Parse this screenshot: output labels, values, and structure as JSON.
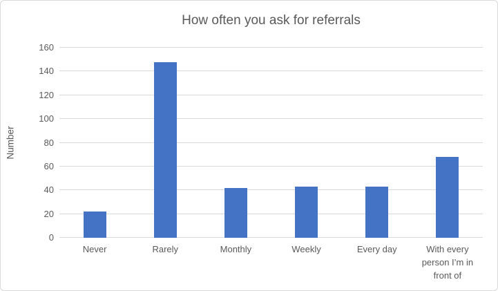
{
  "chart_data": {
    "type": "bar",
    "title": "How often you ask for referrals",
    "xlabel": "",
    "ylabel": "Number",
    "categories": [
      "Never",
      "Rarely",
      "Monthly",
      "Weekly",
      "Every day",
      "With every person I’m in front of"
    ],
    "values": [
      22,
      148,
      42,
      43,
      43,
      68
    ],
    "ylim": [
      0,
      160
    ],
    "y_ticks": [
      0,
      20,
      40,
      60,
      80,
      100,
      120,
      140,
      160
    ],
    "grid": "horizontal",
    "legend": "none",
    "colors": {
      "bar": "#4472C4",
      "gridline": "#D9D9D9",
      "axis_line": "#D9D9D9",
      "text": "#595959",
      "background": "#FFFFFF",
      "border": "#D9D9D9"
    }
  }
}
